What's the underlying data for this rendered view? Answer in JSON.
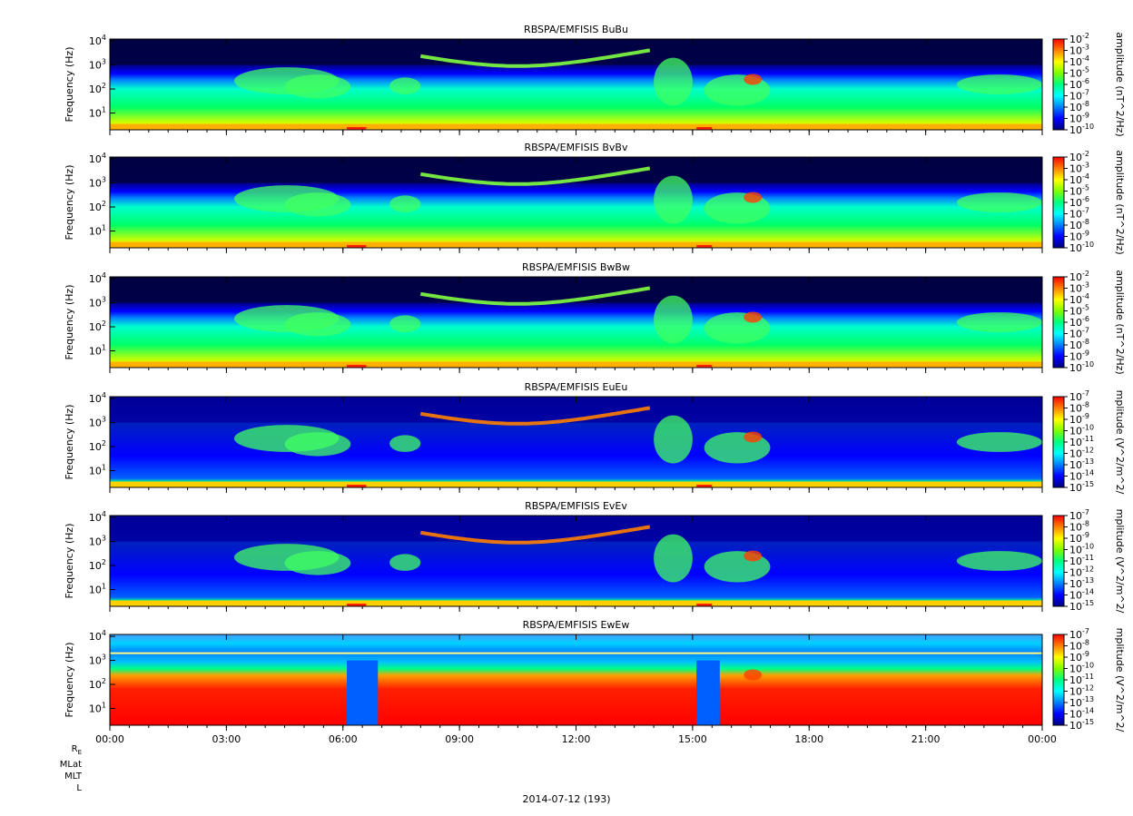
{
  "figure": {
    "date_label": "2014-07-12 (193)",
    "orbit_labels": [
      "R",
      "MLat",
      "MLT",
      "L"
    ],
    "orbit_label_subscript": "E"
  },
  "colors": {
    "background_dark": "#000040",
    "colormap": [
      "#000080",
      "#0000ff",
      "#0080ff",
      "#00ffff",
      "#00ff80",
      "#80ff00",
      "#ffff00",
      "#ff8000",
      "#ff0000"
    ]
  },
  "chart_data": [
    {
      "type": "heatmap",
      "title": "RBSPA/EMFISIS  BuBu",
      "ylabel": "Frequency (Hz)",
      "yscale": "log",
      "ylim": [
        2,
        12000
      ],
      "yticks": [
        "10^1",
        "10^2",
        "10^3",
        "10^4"
      ],
      "x_ticks": [
        "00:00",
        "03:00",
        "06:00",
        "09:00",
        "12:00",
        "15:00",
        "18:00",
        "21:00",
        "00:00"
      ],
      "xlim": [
        "00:00",
        "24:00"
      ],
      "colorbar": {
        "label": "amplitude (nT^2/Hz)",
        "scale": "log",
        "range": [
          1e-10,
          0.01
        ],
        "ticks": [
          "10^-2",
          "10^-3",
          "10^-4",
          "10^-5",
          "10^-6",
          "10^-7",
          "10^-8",
          "10^-9",
          "10^-10"
        ]
      },
      "kind": "B"
    },
    {
      "type": "heatmap",
      "title": "RBSPA/EMFISIS  BvBv",
      "ylabel": "Frequency (Hz)",
      "yscale": "log",
      "ylim": [
        2,
        12000
      ],
      "yticks": [
        "10^1",
        "10^2",
        "10^3",
        "10^4"
      ],
      "x_ticks": [
        "00:00",
        "03:00",
        "06:00",
        "09:00",
        "12:00",
        "15:00",
        "18:00",
        "21:00",
        "00:00"
      ],
      "xlim": [
        "00:00",
        "24:00"
      ],
      "colorbar": {
        "label": "amplitude (nT^2/Hz)",
        "scale": "log",
        "range": [
          1e-10,
          0.01
        ],
        "ticks": [
          "10^-2",
          "10^-3",
          "10^-4",
          "10^-5",
          "10^-6",
          "10^-7",
          "10^-8",
          "10^-9",
          "10^-10"
        ]
      },
      "kind": "B"
    },
    {
      "type": "heatmap",
      "title": "RBSPA/EMFISIS  BwBw",
      "ylabel": "Frequency (Hz)",
      "yscale": "log",
      "ylim": [
        2,
        12000
      ],
      "yticks": [
        "10^1",
        "10^2",
        "10^3",
        "10^4"
      ],
      "x_ticks": [
        "00:00",
        "03:00",
        "06:00",
        "09:00",
        "12:00",
        "15:00",
        "18:00",
        "21:00",
        "00:00"
      ],
      "xlim": [
        "00:00",
        "24:00"
      ],
      "colorbar": {
        "label": "amplitude (nT^2/Hz)",
        "scale": "log",
        "range": [
          1e-10,
          0.01
        ],
        "ticks": [
          "10^-2",
          "10^-3",
          "10^-4",
          "10^-5",
          "10^-6",
          "10^-7",
          "10^-8",
          "10^-9",
          "10^-10"
        ]
      },
      "kind": "B"
    },
    {
      "type": "heatmap",
      "title": "RBSPA/EMFISIS  EuEu",
      "ylabel": "Frequency (Hz)",
      "yscale": "log",
      "ylim": [
        2,
        12000
      ],
      "yticks": [
        "10^1",
        "10^2",
        "10^3",
        "10^4"
      ],
      "x_ticks": [
        "00:00",
        "03:00",
        "06:00",
        "09:00",
        "12:00",
        "15:00",
        "18:00",
        "21:00",
        "00:00"
      ],
      "xlim": [
        "00:00",
        "24:00"
      ],
      "colorbar": {
        "label": "mplitude (V^2/m^2/",
        "scale": "log",
        "range": [
          1e-15,
          1e-07
        ],
        "ticks": [
          "10^-7",
          "10^-8",
          "10^-9",
          "10^-10",
          "10^-11",
          "10^-12",
          "10^-13",
          "10^-14",
          "10^-15"
        ]
      },
      "kind": "E"
    },
    {
      "type": "heatmap",
      "title": "RBSPA/EMFISIS  EvEv",
      "ylabel": "Frequency (Hz)",
      "yscale": "log",
      "ylim": [
        2,
        12000
      ],
      "yticks": [
        "10^1",
        "10^2",
        "10^3",
        "10^4"
      ],
      "x_ticks": [
        "00:00",
        "03:00",
        "06:00",
        "09:00",
        "12:00",
        "15:00",
        "18:00",
        "21:00",
        "00:00"
      ],
      "xlim": [
        "00:00",
        "24:00"
      ],
      "colorbar": {
        "label": "mplitude (V^2/m^2/",
        "scale": "log",
        "range": [
          1e-15,
          1e-07
        ],
        "ticks": [
          "10^-7",
          "10^-8",
          "10^-9",
          "10^-10",
          "10^-11",
          "10^-12",
          "10^-13",
          "10^-14",
          "10^-15"
        ]
      },
      "kind": "E"
    },
    {
      "type": "heatmap",
      "title": "RBSPA/EMFISIS  EwEw",
      "ylabel": "Frequency (Hz)",
      "yscale": "log",
      "ylim": [
        2,
        12000
      ],
      "yticks": [
        "10^1",
        "10^2",
        "10^3",
        "10^4"
      ],
      "x_ticks": [
        "00:00",
        "03:00",
        "06:00",
        "09:00",
        "12:00",
        "15:00",
        "18:00",
        "21:00",
        "00:00"
      ],
      "xlim": [
        "00:00",
        "24:00"
      ],
      "colorbar": {
        "label": "mplitude (V^2/m^2/",
        "scale": "log",
        "range": [
          1e-15,
          1e-07
        ],
        "ticks": [
          "10^-7",
          "10^-8",
          "10^-9",
          "10^-10",
          "10^-11",
          "10^-12",
          "10^-13",
          "10^-14",
          "10^-15"
        ]
      },
      "kind": "Ew"
    }
  ]
}
